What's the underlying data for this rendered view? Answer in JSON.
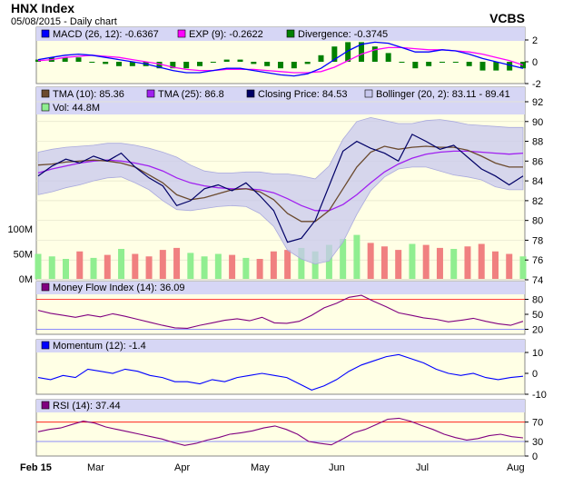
{
  "header": {
    "title": "HNX Index",
    "subtitle": "05/08/2015 - Daily chart",
    "source": "VCBS"
  },
  "colors": {
    "panel_bg": "#ffffe5",
    "legend_bg": "#d6d6f5",
    "bollinger_fill": "#c8c8ee",
    "price": "#000066",
    "tma10": "#6b4a2e",
    "tma25": "#a020f0",
    "macd": "#0000ff",
    "signal": "#ff00ff",
    "divergence": "#008000",
    "vol_up": "#90ee90",
    "vol_down": "#f08080",
    "mfi": "#800080",
    "momentum": "#0000ff",
    "rsi": "#800080",
    "overbought": "#ff0000",
    "oversold": "#6666ff"
  },
  "chart_data": [
    {
      "type": "line",
      "name": "MACD",
      "legend": [
        "MACD (26, 12): -0.6367",
        "EXP (9): -0.2622",
        "Divergence: -0.3745"
      ],
      "ylim": [
        -2,
        2
      ],
      "ticks": [
        "2",
        "0",
        "-2"
      ],
      "series": [
        {
          "name": "MACD (26, 12)",
          "values": [
            0.2,
            0.4,
            0.6,
            0.7,
            0.6,
            0.4,
            0.2,
            0.0,
            -0.2,
            -0.5,
            -0.8,
            -1.0,
            -1.0,
            -0.8,
            -0.6,
            -0.6,
            -0.8,
            -1.0,
            -1.2,
            -1.3,
            -1.1,
            -0.6,
            0.2,
            1.0,
            1.6,
            1.8,
            1.7,
            1.3,
            0.9,
            0.9,
            1.1,
            1.0,
            0.7,
            0.3,
            0.0,
            -0.3,
            -0.6
          ]
        },
        {
          "name": "EXP (9)",
          "values": [
            0.1,
            0.2,
            0.4,
            0.5,
            0.6,
            0.5,
            0.4,
            0.2,
            0.0,
            -0.2,
            -0.5,
            -0.7,
            -0.8,
            -0.8,
            -0.7,
            -0.7,
            -0.7,
            -0.8,
            -0.9,
            -1.0,
            -1.0,
            -0.9,
            -0.5,
            0.1,
            0.7,
            1.1,
            1.3,
            1.3,
            1.2,
            1.1,
            1.1,
            1.0,
            0.9,
            0.7,
            0.4,
            0.1,
            -0.3
          ]
        }
      ]
    },
    {
      "type": "line",
      "name": "Price",
      "legend": [
        "TMA (10): 85.36",
        "TMA (25): 86.8",
        "Closing Price: 84.53",
        "Bollinger (20, 2): 83.11 - 89.41",
        "Vol: 44.8M"
      ],
      "ylim": [
        74,
        92
      ],
      "ticks": [
        "92",
        "90",
        "88",
        "86",
        "84",
        "82",
        "80",
        "78",
        "76",
        "74"
      ],
      "volume_ticks": [
        "100M",
        "50M",
        "0M"
      ],
      "x_labels": [
        "Feb 15",
        "Mar",
        "Apr",
        "May",
        "Jun",
        "Jul",
        "Aug"
      ],
      "series": [
        {
          "name": "Closing Price",
          "values": [
            84.5,
            85.5,
            86.2,
            85.8,
            86.5,
            86.0,
            86.8,
            85.4,
            84.3,
            83.5,
            81.5,
            82.0,
            83.2,
            83.6,
            83.0,
            83.8,
            82.5,
            81.0,
            77.8,
            78.2,
            80.0,
            83.5,
            87.0,
            88.0,
            87.3,
            86.8,
            86.0,
            88.7,
            88.0,
            87.2,
            87.6,
            86.4,
            85.2,
            84.5,
            83.6,
            84.5
          ]
        },
        {
          "name": "TMA (10)",
          "values": [
            85.6,
            85.7,
            85.9,
            86.0,
            86.1,
            86.0,
            85.8,
            85.4,
            84.6,
            83.8,
            82.6,
            82.1,
            82.3,
            82.7,
            83.1,
            83.2,
            82.9,
            82.1,
            80.7,
            79.9,
            79.9,
            81.0,
            83.2,
            85.4,
            86.9,
            87.5,
            87.2,
            87.4,
            87.5,
            87.4,
            87.4,
            87.1,
            86.5,
            85.8,
            85.4,
            85.4
          ]
        },
        {
          "name": "TMA (25)",
          "values": [
            84.8,
            85.2,
            85.5,
            85.8,
            86.0,
            86.1,
            86.0,
            85.8,
            85.5,
            85.0,
            84.3,
            83.8,
            83.5,
            83.3,
            83.2,
            83.2,
            83.1,
            82.8,
            82.2,
            81.5,
            81.0,
            81.0,
            81.6,
            82.6,
            83.8,
            84.9,
            85.7,
            86.3,
            86.7,
            86.9,
            87.0,
            87.0,
            86.9,
            86.8,
            86.7,
            86.8
          ]
        },
        {
          "name": "Bollinger upper",
          "values": [
            86.9,
            87.2,
            87.4,
            87.5,
            87.6,
            87.8,
            87.8,
            87.6,
            87.3,
            86.9,
            86.4,
            85.6,
            85.0,
            84.8,
            84.8,
            84.9,
            84.9,
            84.7,
            84.7,
            84.5,
            84.2,
            85.5,
            88.2,
            90.0,
            90.4,
            90.1,
            89.8,
            89.8,
            90.1,
            90.2,
            90.0,
            89.7,
            89.6,
            89.5,
            89.4,
            89.4
          ]
        },
        {
          "name": "Bollinger lower",
          "values": [
            82.6,
            82.9,
            83.3,
            83.6,
            84.0,
            84.3,
            84.4,
            83.8,
            83.1,
            82.0,
            81.1,
            81.0,
            81.2,
            81.4,
            81.5,
            81.4,
            80.7,
            79.4,
            77.0,
            76.1,
            75.6,
            75.9,
            77.8,
            80.6,
            83.0,
            84.4,
            85.2,
            85.4,
            85.4,
            85.0,
            84.6,
            84.4,
            84.1,
            83.4,
            83.1,
            83.1
          ]
        }
      ],
      "volume": {
        "values": [
          50,
          45,
          40,
          55,
          42,
          48,
          60,
          50,
          45,
          58,
          62,
          52,
          45,
          50,
          48,
          42,
          40,
          55,
          58,
          62,
          55,
          68,
          80,
          88,
          72,
          65,
          58,
          70,
          68,
          62,
          60,
          65,
          70,
          55,
          50,
          45
        ],
        "up": [
          true,
          true,
          true,
          false,
          true,
          false,
          true,
          false,
          false,
          false,
          false,
          true,
          true,
          true,
          false,
          true,
          false,
          false,
          false,
          true,
          true,
          true,
          true,
          true,
          false,
          false,
          false,
          true,
          false,
          false,
          true,
          false,
          false,
          false,
          false,
          true
        ]
      }
    },
    {
      "type": "line",
      "name": "MFI",
      "legend": [
        "Money Flow Index (14): 36.09"
      ],
      "ylim": [
        10,
        90
      ],
      "ticks": [
        "80",
        "50",
        "20"
      ],
      "levels": [
        80,
        20
      ],
      "series": [
        {
          "name": "Money Flow Index (14)",
          "values": [
            58,
            52,
            48,
            44,
            49,
            45,
            51,
            46,
            40,
            34,
            28,
            23,
            22,
            28,
            33,
            38,
            41,
            37,
            44,
            33,
            32,
            36,
            48,
            63,
            72,
            84,
            88,
            76,
            65,
            53,
            48,
            43,
            40,
            35,
            38,
            42,
            36,
            31,
            28,
            36
          ]
        }
      ]
    },
    {
      "type": "line",
      "name": "Momentum",
      "legend": [
        "Momentum (12): -1.4"
      ],
      "ylim": [
        -10,
        10
      ],
      "ticks": [
        "10",
        "0",
        "-10"
      ],
      "series": [
        {
          "name": "Momentum (12)",
          "values": [
            -2,
            -3,
            -1,
            -2,
            2,
            1,
            0,
            2,
            1,
            -1,
            -2,
            -4,
            -4,
            -5,
            -3,
            -4,
            -2,
            -1,
            0,
            -1,
            -2,
            -5,
            -8,
            -6,
            -3,
            1,
            4,
            6,
            8,
            9,
            7,
            5,
            2,
            0,
            -1,
            0,
            -2,
            -3,
            -2,
            -1.4
          ]
        }
      ]
    },
    {
      "type": "line",
      "name": "RSI",
      "legend": [
        "RSI (14): 37.44"
      ],
      "ylim": [
        0,
        90
      ],
      "ticks": [
        "70",
        "30",
        "0"
      ],
      "levels": [
        70,
        30
      ],
      "series": [
        {
          "name": "RSI (14)",
          "values": [
            50,
            55,
            58,
            65,
            72,
            68,
            60,
            55,
            50,
            45,
            40,
            35,
            28,
            22,
            26,
            33,
            38,
            45,
            48,
            52,
            58,
            62,
            55,
            45,
            30,
            26,
            23,
            35,
            48,
            55,
            65,
            76,
            78,
            72,
            63,
            55,
            45,
            38,
            33,
            36,
            42,
            45,
            40,
            37.44
          ]
        }
      ]
    }
  ]
}
